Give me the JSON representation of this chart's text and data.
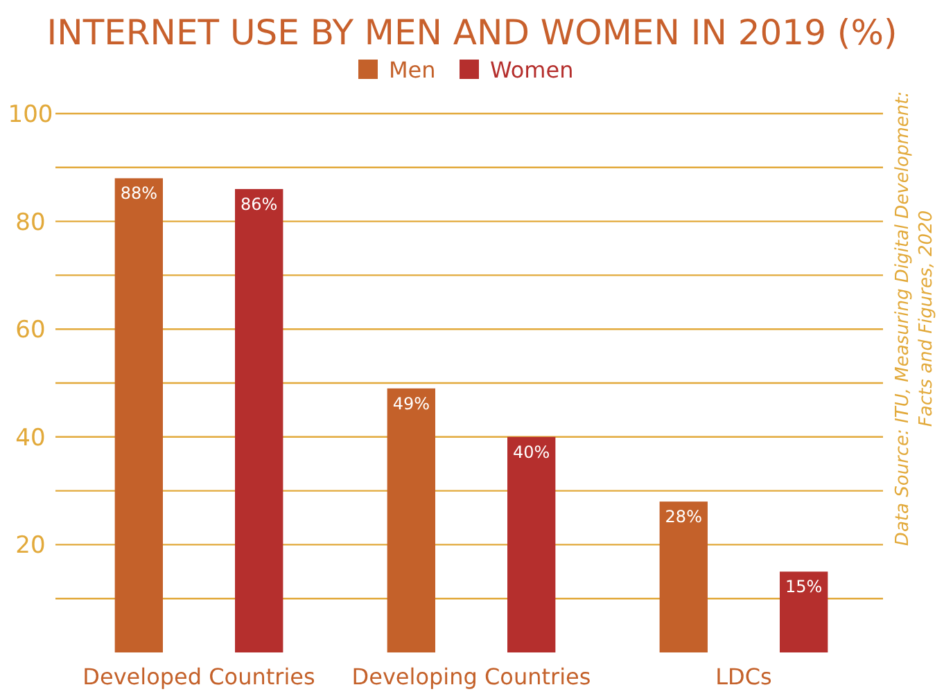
{
  "chart_data": {
    "type": "bar",
    "title": "INTERNET USE BY MEN AND WOMEN IN 2019 (%)",
    "categories": [
      "Developed Countries",
      "Developing Countries",
      "LDCs"
    ],
    "series": [
      {
        "name": "Men",
        "color": "#c4612a",
        "values": [
          88,
          49,
          28
        ],
        "value_labels": [
          "88%",
          "49%",
          "28%"
        ]
      },
      {
        "name": "Women",
        "color": "#b52f2d",
        "values": [
          86,
          40,
          15
        ],
        "value_labels": [
          "86%",
          "40%",
          "15%"
        ]
      }
    ],
    "ylim": [
      0,
      100
    ],
    "yticks": [
      {
        "value": 10,
        "label": null
      },
      20,
      {
        "value": 30,
        "label": null
      },
      40,
      {
        "value": 50,
        "label": null
      },
      60,
      {
        "value": 70,
        "label": null
      },
      80,
      {
        "value": 90,
        "label": null
      },
      100
    ],
    "grid": "y",
    "legend": "top",
    "annotations": [
      "Data Source: ITU, Measuring Digital Development: Facts and Figures, 2020"
    ]
  }
}
